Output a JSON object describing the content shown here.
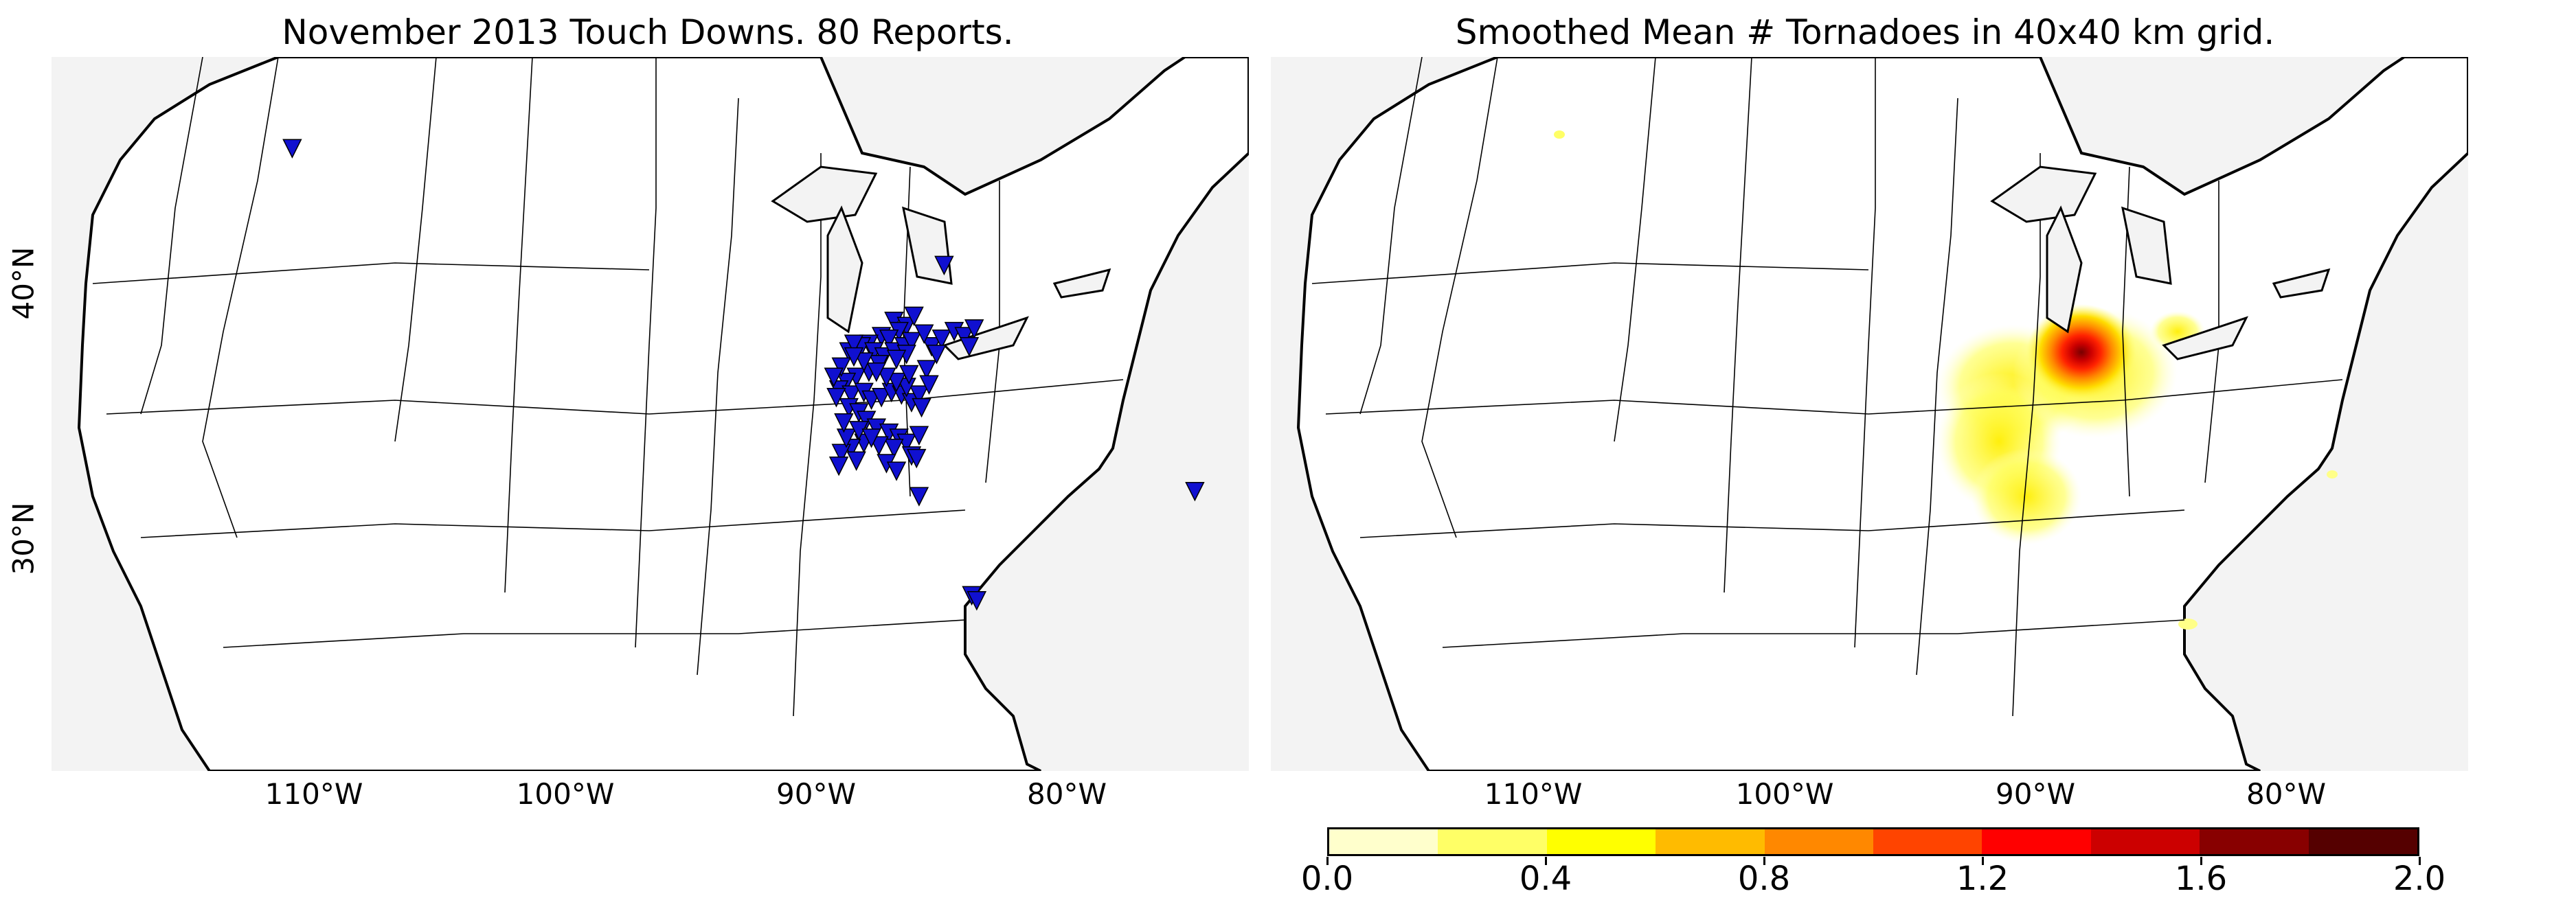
{
  "panels": [
    {
      "title": "November 2013 Touch Downs. 80 Reports."
    },
    {
      "title": "Smoothed Mean # Tornadoes in 40x40 km grid."
    }
  ],
  "lon_ticks": [
    "110°W",
    "100°W",
    "90°W",
    "80°W"
  ],
  "lat_ticks": [
    "40°N",
    "30°N"
  ],
  "colors": {
    "marker": "#1010d0",
    "ocean": "#f3f3f3",
    "land": "#ffffff"
  },
  "colorbar": {
    "labels": [
      "0.0",
      "0.4",
      "0.8",
      "1.2",
      "1.6",
      "2.0"
    ],
    "colors": [
      "#ffffcc",
      "#ffff66",
      "#ffff00",
      "#ffbb00",
      "#ff8800",
      "#ff4400",
      "#ff0000",
      "#cc0000",
      "#880000",
      "#550000"
    ]
  },
  "chart_data": {
    "type": "scatter",
    "count": 80,
    "x_unit": "longitude (°E)",
    "y_unit": "latitude (°N)",
    "points": [
      [
        -112.0,
        45.0
      ],
      [
        -86.0,
        40.4
      ],
      [
        -88.0,
        38.2
      ],
      [
        -87.5,
        38.0
      ],
      [
        -87.8,
        37.8
      ],
      [
        -88.5,
        37.6
      ],
      [
        -88.2,
        37.5
      ],
      [
        -89.0,
        37.3
      ],
      [
        -89.3,
        37.2
      ],
      [
        -89.8,
        37.0
      ],
      [
        -89.6,
        37.3
      ],
      [
        -88.8,
        37.0
      ],
      [
        -88.4,
        36.8
      ],
      [
        -88.0,
        37.0
      ],
      [
        -87.6,
        37.2
      ],
      [
        -87.3,
        37.4
      ],
      [
        -87.5,
        36.9
      ],
      [
        -87.9,
        36.7
      ],
      [
        -88.6,
        36.5
      ],
      [
        -89.0,
        36.2
      ],
      [
        -89.5,
        36.0
      ],
      [
        -89.9,
        35.8
      ],
      [
        -90.2,
        35.5
      ],
      [
        -89.7,
        35.3
      ],
      [
        -89.2,
        35.4
      ],
      [
        -88.9,
        35.1
      ],
      [
        -88.5,
        35.2
      ],
      [
        -88.1,
        35.4
      ],
      [
        -87.7,
        35.3
      ],
      [
        -87.3,
        35.0
      ],
      [
        -87.0,
        35.3
      ],
      [
        -87.5,
        35.6
      ],
      [
        -87.9,
        35.8
      ],
      [
        -88.3,
        36.0
      ],
      [
        -88.7,
        36.2
      ],
      [
        -89.2,
        36.6
      ],
      [
        -89.6,
        36.8
      ],
      [
        -90.1,
        36.4
      ],
      [
        -90.4,
        36.0
      ],
      [
        -90.3,
        35.2
      ],
      [
        -89.8,
        34.8
      ],
      [
        -89.4,
        34.6
      ],
      [
        -89.1,
        34.3
      ],
      [
        -88.7,
        34.0
      ],
      [
        -88.2,
        33.8
      ],
      [
        -87.8,
        33.6
      ],
      [
        -87.5,
        33.4
      ],
      [
        -88.0,
        33.2
      ],
      [
        -88.6,
        33.3
      ],
      [
        -89.2,
        33.4
      ],
      [
        -89.7,
        33.2
      ],
      [
        -90.1,
        33.0
      ],
      [
        -89.9,
        33.6
      ],
      [
        -90.0,
        34.2
      ],
      [
        -89.4,
        33.9
      ],
      [
        -88.9,
        33.6
      ],
      [
        -87.3,
        32.9
      ],
      [
        -89.5,
        32.7
      ],
      [
        -90.2,
        32.5
      ],
      [
        -88.3,
        32.6
      ],
      [
        -87.9,
        32.3
      ],
      [
        -87.1,
        32.8
      ],
      [
        -87.0,
        33.7
      ],
      [
        -86.9,
        34.8
      ],
      [
        -86.5,
        37.2
      ],
      [
        -86.1,
        37.5
      ],
      [
        -85.6,
        37.8
      ],
      [
        -85.2,
        37.6
      ],
      [
        -84.8,
        37.9
      ],
      [
        -85.0,
        37.2
      ],
      [
        -86.8,
        37.7
      ],
      [
        -87.2,
        38.4
      ],
      [
        -86.3,
        36.9
      ],
      [
        -86.7,
        36.3
      ],
      [
        -87.0,
        31.3
      ],
      [
        -84.9,
        27.4
      ],
      [
        -84.7,
        27.2
      ],
      [
        -76.0,
        31.5
      ],
      [
        -87.4,
        36.1
      ],
      [
        -86.6,
        35.7
      ]
    ],
    "density_colorbar_range": [
      0.0,
      2.0
    ]
  }
}
